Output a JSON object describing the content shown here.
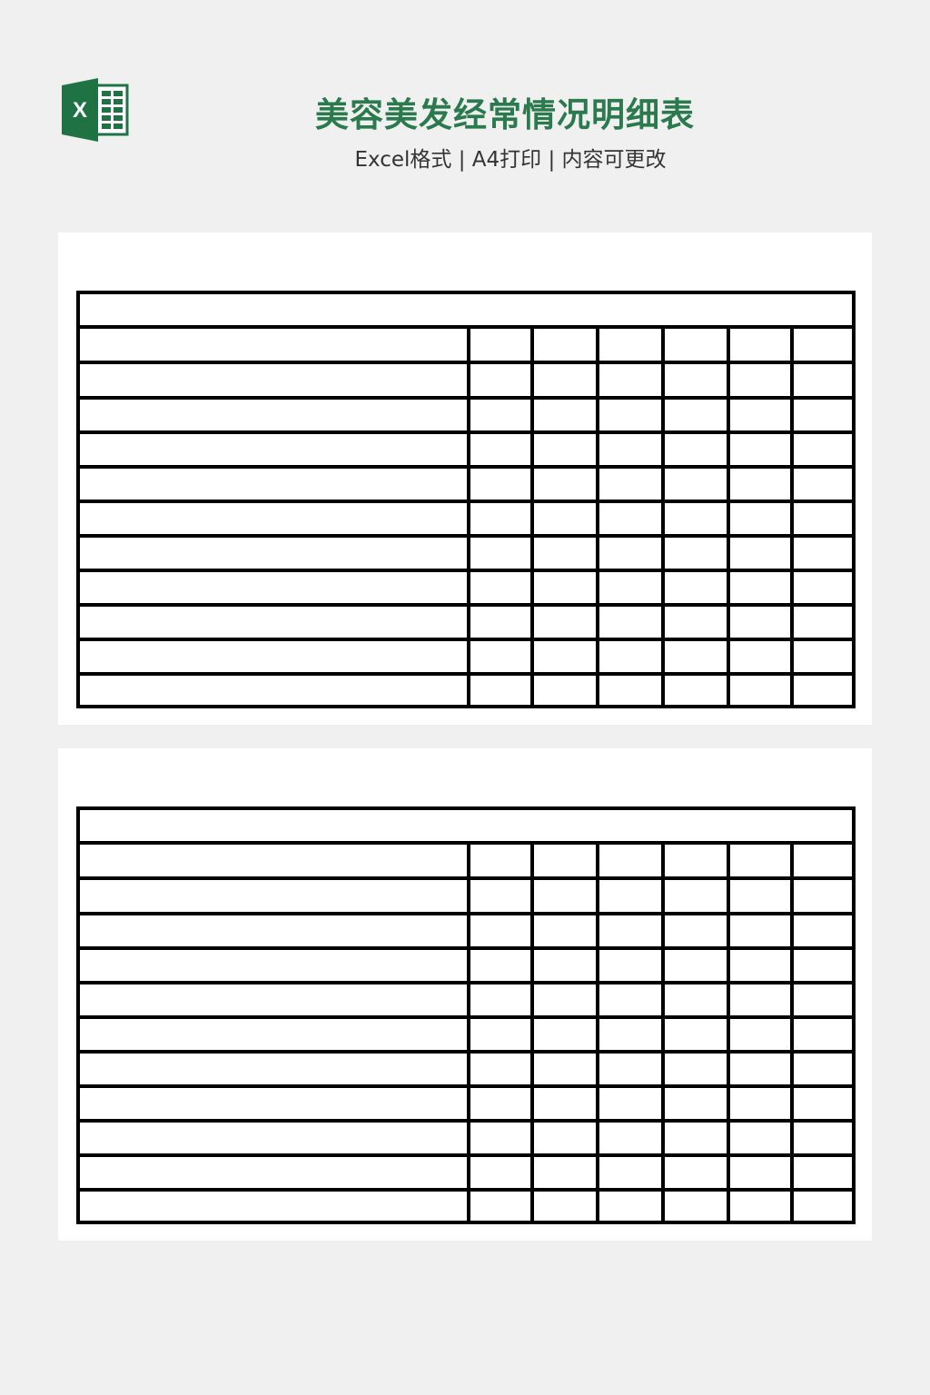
{
  "header": {
    "app_icon": "excel-icon",
    "title": "美容美发经常情况明细表",
    "subtitle": "Excel格式 | A4打印 | 内容可更改"
  },
  "colors": {
    "title": "#2a7a4e",
    "excel_green": "#1f7244",
    "background": "#f0f0f0"
  },
  "previews": [
    {
      "label": "sheet-preview-1"
    },
    {
      "label": "sheet-preview-2"
    }
  ]
}
